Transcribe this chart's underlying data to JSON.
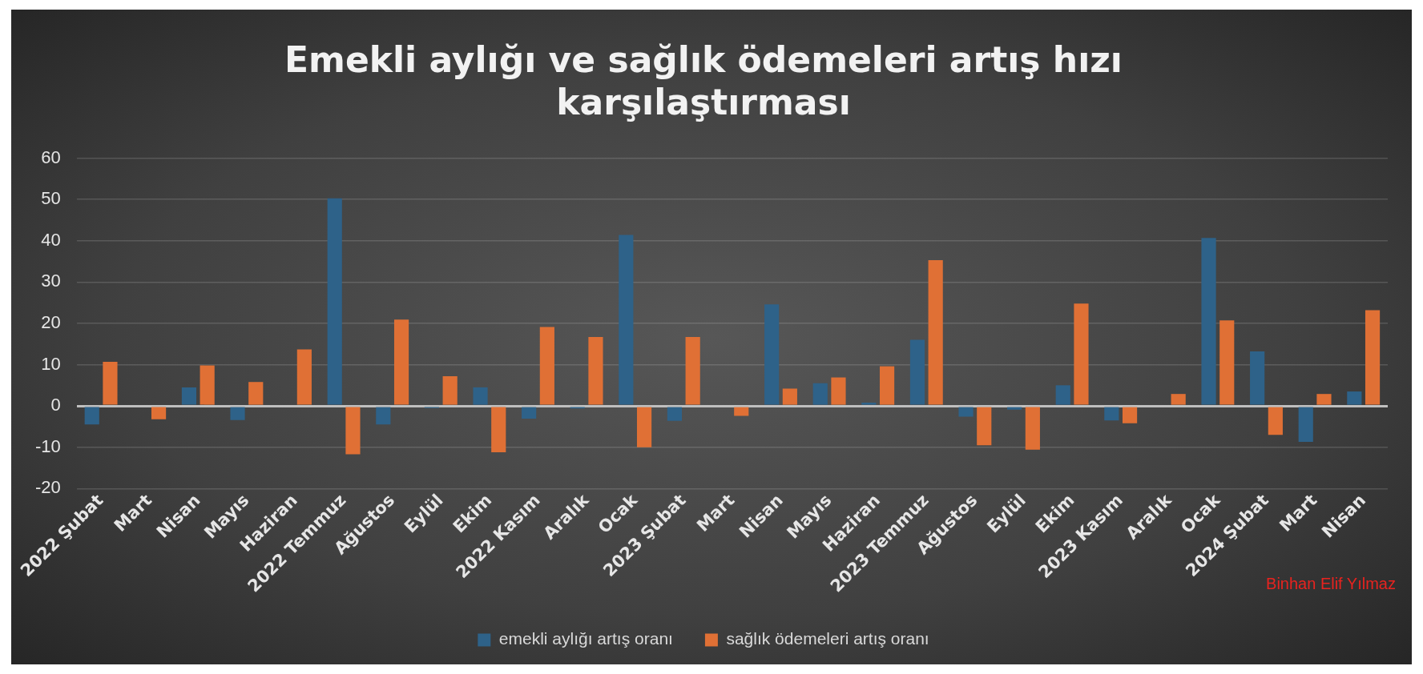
{
  "chart_data": {
    "type": "bar",
    "title": "Emekli aylığı ve sağlık ödemeleri artış hızı karşılaştırması",
    "categories": [
      "2022 Şubat",
      "Mart",
      "Nisan",
      "Mayıs",
      "Haziran",
      "2022 Temmuz",
      "Ağustos",
      "Eylül",
      "Ekim",
      "2022 Kasım",
      "Aralık",
      "Ocak",
      "2023 Şubat",
      "Mart",
      "Nisan",
      "Mayıs",
      "Haziran",
      "2023 Temmuz",
      "Ağustos",
      "Eylül",
      "Ekim",
      "2023 Kasım",
      "Aralık",
      "Ocak",
      "2024 Şubat",
      "Mart",
      "Nisan"
    ],
    "series": [
      {
        "name": "emekli aylığı artış oranı",
        "color": "#2e6289",
        "values": [
          -4.5,
          null,
          4.5,
          -3.4,
          null,
          50.3,
          -4.5,
          -0.5,
          4.5,
          -3.1,
          -0.6,
          41.4,
          -3.6,
          null,
          24.6,
          5.5,
          0.8,
          16.0,
          -2.6,
          -0.9,
          5.0,
          -3.5,
          null,
          40.7,
          13.2,
          -8.7,
          3.5
        ]
      },
      {
        "name": "sağlık ödemeleri artış oranı",
        "color": "#e07035",
        "values": [
          10.7,
          -3.2,
          9.8,
          5.8,
          13.7,
          -11.7,
          20.9,
          7.2,
          -11.2,
          19.1,
          16.7,
          -10.0,
          16.7,
          -2.4,
          4.2,
          6.9,
          9.6,
          35.3,
          -9.5,
          -10.6,
          24.8,
          -4.2,
          2.9,
          20.7,
          -7.0,
          2.9,
          23.2
        ]
      }
    ],
    "ylim": [
      -20,
      60
    ],
    "yticks": [
      -20,
      -10,
      0,
      10,
      20,
      30,
      40,
      50,
      60
    ],
    "grid": "y",
    "legend": "bottom",
    "annotations": [
      "Binhan Elif Yılmaz"
    ]
  }
}
